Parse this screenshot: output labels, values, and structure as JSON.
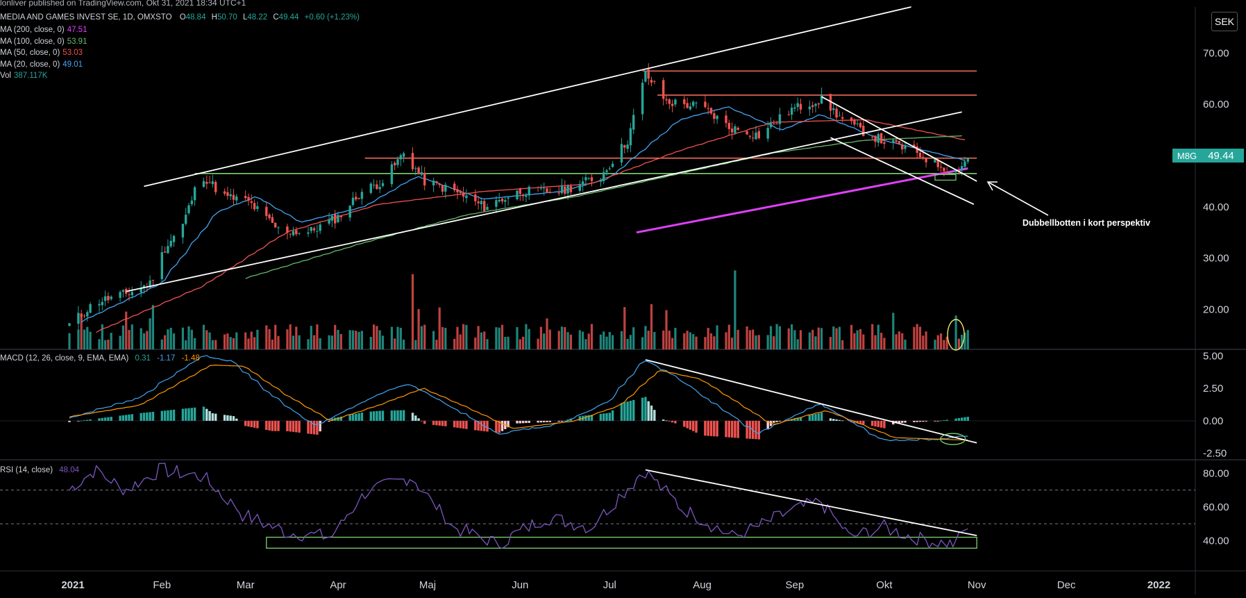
{
  "header": {
    "publisher_line": "lonliver published on TradingView.com, Okt 31, 2021 18:34 UTC+1",
    "symbol_line": "MEDIA AND GAMES INVEST SE, 1D, OMXSTO",
    "open_label": "O",
    "open": "48.84",
    "high_label": "H",
    "high": "50.70",
    "low_label": "L",
    "low": "48.22",
    "close_label": "C",
    "close": "49.44",
    "change": "+0.60 (+1.23%)"
  },
  "indicators": [
    {
      "label": "MA (200, close, 0)",
      "value": "47.51",
      "color": "#e040fb"
    },
    {
      "label": "MA (100, close, 0)",
      "value": "53.91",
      "color": "#66bb6a"
    },
    {
      "label": "MA (50, close, 0)",
      "value": "53.03",
      "color": "#ef5350"
    },
    {
      "label": "MA (20, close, 0)",
      "value": "49.01",
      "color": "#42a5f5"
    },
    {
      "label": "Vol",
      "value": "387.117K",
      "color": "#26a69a"
    }
  ],
  "currency": "SEK",
  "ticker_tag": "M8G",
  "price_tag": "49.44",
  "annotation": "Dubbellbotten i kort perspektiv",
  "macd_legend": {
    "label": "MACD (12, 26, close, 9, EMA, EMA)",
    "v1": "0.31",
    "v2": "-1.17",
    "v3": "-1.48"
  },
  "rsi_legend": {
    "label": "RSI (14, close)",
    "value": "48.04"
  },
  "colors": {
    "up": "#26a69a",
    "down": "#ef5350",
    "ma20": "#42a5f5",
    "ma50": "#ef5350",
    "ma100": "#66bb6a",
    "ma200": "#e040fb",
    "macd_line": "#42a5f5",
    "signal_line": "#ff9800",
    "rsi_line": "#7e57c2",
    "horizontal_level": "#f06a5a",
    "support_level": "#7cd46e"
  },
  "chart_data": [
    {
      "type": "candlestick",
      "pane": "price",
      "x_axis_labels": [
        "2021",
        "Feb",
        "Mar",
        "Apr",
        "Maj",
        "Jun",
        "Jul",
        "Aug",
        "Sep",
        "Okt",
        "Nov",
        "Dec",
        "2022"
      ],
      "y_ticks": [
        20,
        30,
        40,
        50,
        60,
        70
      ],
      "y_tick_labels": [
        "20.00",
        "30.00",
        "40.00",
        "50.00",
        "60.00",
        "70.00"
      ],
      "ylim": [
        12.2,
        79.0
      ],
      "close_path": [
        {
          "x": "2021-01-01",
          "y": 17.0
        },
        {
          "x": "2021-01-10",
          "y": 21.5
        },
        {
          "x": "2021-01-20",
          "y": 23.0
        },
        {
          "x": "2021-01-28",
          "y": 25.0
        },
        {
          "x": "2021-02-02",
          "y": 32.0
        },
        {
          "x": "2021-02-08",
          "y": 36.5
        },
        {
          "x": "2021-02-14",
          "y": 46.5
        },
        {
          "x": "2021-02-22",
          "y": 42.0
        },
        {
          "x": "2021-03-02",
          "y": 41.0
        },
        {
          "x": "2021-03-12",
          "y": 35.5
        },
        {
          "x": "2021-03-22",
          "y": 35.0
        },
        {
          "x": "2021-04-01",
          "y": 38.0
        },
        {
          "x": "2021-04-09",
          "y": 43.0
        },
        {
          "x": "2021-04-16",
          "y": 45.0
        },
        {
          "x": "2021-04-23",
          "y": 50.5
        },
        {
          "x": "2021-04-30",
          "y": 45.0
        },
        {
          "x": "2021-05-10",
          "y": 43.0
        },
        {
          "x": "2021-05-20",
          "y": 40.0
        },
        {
          "x": "2021-06-01",
          "y": 43.0
        },
        {
          "x": "2021-06-14",
          "y": 43.0
        },
        {
          "x": "2021-06-28",
          "y": 46.0
        },
        {
          "x": "2021-07-07",
          "y": 53.0
        },
        {
          "x": "2021-07-13",
          "y": 66.0
        },
        {
          "x": "2021-07-20",
          "y": 60.5
        },
        {
          "x": "2021-08-01",
          "y": 59.5
        },
        {
          "x": "2021-08-10",
          "y": 55.5
        },
        {
          "x": "2021-08-20",
          "y": 54.0
        },
        {
          "x": "2021-08-31",
          "y": 59.0
        },
        {
          "x": "2021-09-10",
          "y": 61.0
        },
        {
          "x": "2021-09-18",
          "y": 56.5
        },
        {
          "x": "2021-09-30",
          "y": 53.0
        },
        {
          "x": "2021-10-10",
          "y": 51.0
        },
        {
          "x": "2021-10-20",
          "y": 48.0
        },
        {
          "x": "2021-10-25",
          "y": 47.0
        },
        {
          "x": "2021-10-29",
          "y": 49.44
        }
      ],
      "moving_averages": [
        {
          "name": "MA20",
          "points": [
            {
              "x": "2021-01-05",
              "y": 17.5
            },
            {
              "x": "2021-02-01",
              "y": 25.0
            },
            {
              "x": "2021-02-20",
              "y": 39.0
            },
            {
              "x": "2021-03-05",
              "y": 42.0
            },
            {
              "x": "2021-03-20",
              "y": 37.0
            },
            {
              "x": "2021-04-10",
              "y": 40.0
            },
            {
              "x": "2021-04-28",
              "y": 46.0
            },
            {
              "x": "2021-05-20",
              "y": 41.5
            },
            {
              "x": "2021-06-15",
              "y": 43.0
            },
            {
              "x": "2021-07-01",
              "y": 45.5
            },
            {
              "x": "2021-07-25",
              "y": 57.0
            },
            {
              "x": "2021-08-10",
              "y": 59.5
            },
            {
              "x": "2021-08-28",
              "y": 55.0
            },
            {
              "x": "2021-09-10",
              "y": 58.0
            },
            {
              "x": "2021-10-01",
              "y": 53.0
            },
            {
              "x": "2021-10-29",
              "y": 49.0
            }
          ]
        },
        {
          "name": "MA50",
          "points": [
            {
              "x": "2021-01-10",
              "y": 15.5
            },
            {
              "x": "2021-02-15",
              "y": 24.5
            },
            {
              "x": "2021-03-15",
              "y": 35.0
            },
            {
              "x": "2021-04-15",
              "y": 40.5
            },
            {
              "x": "2021-05-20",
              "y": 43.0
            },
            {
              "x": "2021-06-25",
              "y": 44.5
            },
            {
              "x": "2021-07-25",
              "y": 51.0
            },
            {
              "x": "2021-08-25",
              "y": 56.5
            },
            {
              "x": "2021-09-25",
              "y": 57.0
            },
            {
              "x": "2021-10-29",
              "y": 53.0
            }
          ]
        },
        {
          "name": "MA100",
          "points": [
            {
              "x": "2021-03-01",
              "y": 26.0
            },
            {
              "x": "2021-04-10",
              "y": 33.0
            },
            {
              "x": "2021-05-15",
              "y": 38.5
            },
            {
              "x": "2021-06-20",
              "y": 42.0
            },
            {
              "x": "2021-07-25",
              "y": 46.5
            },
            {
              "x": "2021-08-25",
              "y": 50.5
            },
            {
              "x": "2021-09-25",
              "y": 53.0
            },
            {
              "x": "2021-10-29",
              "y": 53.9
            }
          ]
        },
        {
          "name": "MA200",
          "points": [
            {
              "x": "2021-07-10",
              "y": 35.0
            },
            {
              "x": "2021-10-29",
              "y": 47.5
            }
          ]
        }
      ],
      "horizontal_levels": [
        {
          "y": 66.5,
          "x_start": "2021-07-12",
          "x_end": "2021-11-01",
          "color": "#f06a5a"
        },
        {
          "y": 61.8,
          "x_start": "2021-07-17",
          "x_end": "2021-11-01",
          "color": "#f06a5a"
        },
        {
          "y": 49.5,
          "x_start": "2021-04-10",
          "x_end": "2021-11-01",
          "color": "#f06a5a"
        },
        {
          "y": 46.5,
          "x_start": "2021-02-12",
          "x_end": "2021-11-01",
          "color": "#7cd46e"
        }
      ],
      "trend_lines": [
        {
          "from": {
            "x": "2021-01-26",
            "y": 44.0
          },
          "to": {
            "x": "2021-10-10",
            "y": 79.0
          }
        },
        {
          "from": {
            "x": "2021-01-20",
            "y": 23.5
          },
          "to": {
            "x": "2021-10-27",
            "y": 58.5
          }
        },
        {
          "from": {
            "x": "2021-09-10",
            "y": 61.5
          },
          "to": {
            "x": "2021-11-01",
            "y": 45.0
          }
        },
        {
          "from": {
            "x": "2021-09-13",
            "y": 53.5
          },
          "to": {
            "x": "2021-10-31",
            "y": 40.5
          }
        }
      ],
      "volume_ylim": [
        0,
        1200
      ],
      "volume_spikes": [
        {
          "x": "2021-04-26",
          "v": 1000
        },
        {
          "x": "2021-07-15",
          "v": 600
        },
        {
          "x": "2021-08-12",
          "v": 1050
        },
        {
          "x": "2021-10-25",
          "v": 450
        }
      ]
    },
    {
      "type": "line",
      "pane": "macd",
      "y_ticks": [
        -2.5,
        0,
        2.5,
        5
      ],
      "y_tick_labels": [
        "-2.50",
        "0.00",
        "2.50",
        "5.00"
      ],
      "ylim": [
        -3.0,
        5.5
      ],
      "series": [
        {
          "name": "MACD",
          "points": [
            {
              "x": "2021-01-01",
              "y": 0.2
            },
            {
              "x": "2021-01-25",
              "y": 1.8
            },
            {
              "x": "2021-02-15",
              "y": 5.0
            },
            {
              "x": "2021-02-25",
              "y": 4.6
            },
            {
              "x": "2021-03-10",
              "y": 2.0
            },
            {
              "x": "2021-03-25",
              "y": -0.4
            },
            {
              "x": "2021-04-10",
              "y": 1.5
            },
            {
              "x": "2021-04-25",
              "y": 2.9
            },
            {
              "x": "2021-05-10",
              "y": 1.0
            },
            {
              "x": "2021-05-25",
              "y": -1.0
            },
            {
              "x": "2021-06-15",
              "y": -0.2
            },
            {
              "x": "2021-07-01",
              "y": 1.5
            },
            {
              "x": "2021-07-13",
              "y": 4.7
            },
            {
              "x": "2021-07-25",
              "y": 3.2
            },
            {
              "x": "2021-08-20",
              "y": -1.0
            },
            {
              "x": "2021-09-10",
              "y": 1.3
            },
            {
              "x": "2021-10-01",
              "y": -1.5
            },
            {
              "x": "2021-10-20",
              "y": -1.4
            },
            {
              "x": "2021-10-29",
              "y": -1.17
            }
          ]
        },
        {
          "name": "Signal",
          "points": [
            {
              "x": "2021-01-01",
              "y": 0.3
            },
            {
              "x": "2021-01-25",
              "y": 1.2
            },
            {
              "x": "2021-02-18",
              "y": 4.3
            },
            {
              "x": "2021-03-01",
              "y": 4.2
            },
            {
              "x": "2021-03-15",
              "y": 2.0
            },
            {
              "x": "2021-03-30",
              "y": 0.0
            },
            {
              "x": "2021-04-15",
              "y": 1.2
            },
            {
              "x": "2021-04-30",
              "y": 2.5
            },
            {
              "x": "2021-05-15",
              "y": 1.0
            },
            {
              "x": "2021-05-30",
              "y": -0.6
            },
            {
              "x": "2021-06-20",
              "y": 0.0
            },
            {
              "x": "2021-07-05",
              "y": 1.2
            },
            {
              "x": "2021-07-18",
              "y": 3.9
            },
            {
              "x": "2021-08-01",
              "y": 3.2
            },
            {
              "x": "2021-08-25",
              "y": -0.3
            },
            {
              "x": "2021-09-12",
              "y": 0.8
            },
            {
              "x": "2021-10-05",
              "y": -1.3
            },
            {
              "x": "2021-10-29",
              "y": -1.48
            }
          ]
        }
      ],
      "trend_line": {
        "from": {
          "x": "2021-07-13",
          "y": 4.7
        },
        "to": {
          "x": "2021-11-01",
          "y": -1.7
        }
      }
    },
    {
      "type": "line",
      "pane": "rsi",
      "y_ticks": [
        40,
        60,
        80
      ],
      "y_tick_labels": [
        "40.00",
        "60.00",
        "80.00"
      ],
      "ylim": [
        22,
        88
      ],
      "band_lines": [
        70,
        50
      ],
      "series": [
        {
          "name": "RSI",
          "points": [
            {
              "x": "2021-01-01",
              "y": 70
            },
            {
              "x": "2021-01-10",
              "y": 82
            },
            {
              "x": "2021-01-20",
              "y": 70
            },
            {
              "x": "2021-02-01",
              "y": 82
            },
            {
              "x": "2021-02-15",
              "y": 78
            },
            {
              "x": "2021-03-01",
              "y": 55
            },
            {
              "x": "2021-03-15",
              "y": 45
            },
            {
              "x": "2021-03-30",
              "y": 42
            },
            {
              "x": "2021-04-10",
              "y": 68
            },
            {
              "x": "2021-04-26",
              "y": 78
            },
            {
              "x": "2021-05-10",
              "y": 48
            },
            {
              "x": "2021-05-25",
              "y": 38
            },
            {
              "x": "2021-06-10",
              "y": 54
            },
            {
              "x": "2021-06-25",
              "y": 48
            },
            {
              "x": "2021-07-13",
              "y": 82
            },
            {
              "x": "2021-07-25",
              "y": 60
            },
            {
              "x": "2021-08-12",
              "y": 42
            },
            {
              "x": "2021-09-01",
              "y": 58
            },
            {
              "x": "2021-09-10",
              "y": 63
            },
            {
              "x": "2021-09-20",
              "y": 42
            },
            {
              "x": "2021-10-01",
              "y": 48
            },
            {
              "x": "2021-10-15",
              "y": 40
            },
            {
              "x": "2021-10-25",
              "y": 38
            },
            {
              "x": "2021-10-29",
              "y": 48
            }
          ]
        }
      ],
      "trend_line": {
        "from": {
          "x": "2021-07-13",
          "y": 82
        },
        "to": {
          "x": "2021-11-01",
          "y": 43
        }
      },
      "support_box": {
        "x_start": "2021-03-08",
        "x_end": "2021-11-01",
        "y_low": 35.5,
        "y_high": 42
      }
    }
  ]
}
